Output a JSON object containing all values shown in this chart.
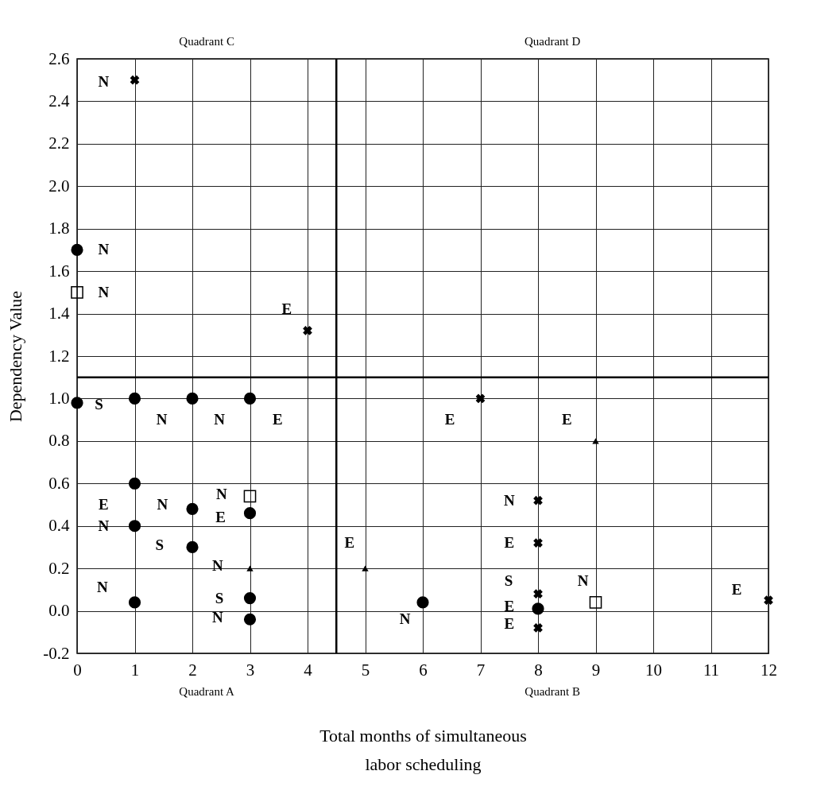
{
  "chart_data": {
    "type": "scatter",
    "xlabel": "Total months of simultaneous labor scheduling",
    "ylabel": "Dependency Value",
    "xlim": [
      0,
      12
    ],
    "ylim": [
      -0.2,
      2.6
    ],
    "xticks": [
      0,
      1,
      2,
      3,
      4,
      5,
      6,
      7,
      8,
      9,
      10,
      11,
      12
    ],
    "yticks": [
      -0.2,
      {
        "value": 0,
        "label": "0.0"
      },
      0.2,
      0.4,
      0.6,
      0.8,
      {
        "value": 1,
        "label": "1.0"
      },
      1.2,
      1.4,
      1.6,
      1.8,
      {
        "value": 2,
        "label": "2.0"
      },
      2.2,
      2.4,
      2.6
    ],
    "grid": true,
    "series": [
      {
        "marker": "circle",
        "color": "#000000",
        "x": [
          0,
          0,
          1,
          2,
          3,
          1,
          2,
          3,
          1,
          2,
          3,
          1,
          3,
          6,
          8
        ],
        "values": [
          1.7,
          0.98,
          1.0,
          1.0,
          1.0,
          0.6,
          0.48,
          0.46,
          0.4,
          0.3,
          0.06,
          0.04,
          -0.04,
          0.04,
          0.01
        ]
      },
      {
        "marker": "square",
        "color": "#000000",
        "x": [
          0,
          3,
          9
        ],
        "values": [
          1.5,
          0.54,
          0.04
        ]
      },
      {
        "marker": "triangle",
        "color": "#000000",
        "x": [
          3,
          5,
          9
        ],
        "values": [
          0.2,
          0.2,
          0.8
        ]
      },
      {
        "marker": "cross",
        "color": "#000000",
        "x": [
          1,
          4,
          7,
          8,
          8,
          8,
          8,
          12
        ],
        "values": [
          2.5,
          1.32,
          1.0,
          0.52,
          0.32,
          0.08,
          -0.08,
          0.05
        ]
      }
    ],
    "ref_lines": [
      {
        "axis": "x",
        "value": 4.5
      },
      {
        "axis": "y",
        "value": 1.1
      }
    ],
    "annotations": [
      "Quadrant C",
      "Quadrant D",
      "Quadrant A",
      "Quadrant B",
      "N",
      "N",
      "N",
      "E",
      "S",
      "N",
      "N",
      "E",
      "E",
      "N",
      "N",
      "E",
      "N",
      "S",
      "N",
      "N",
      "S",
      "N",
      "E",
      "E",
      "N",
      "E",
      "E",
      "S",
      "N",
      "E",
      "N",
      "E",
      "E"
    ]
  }
}
